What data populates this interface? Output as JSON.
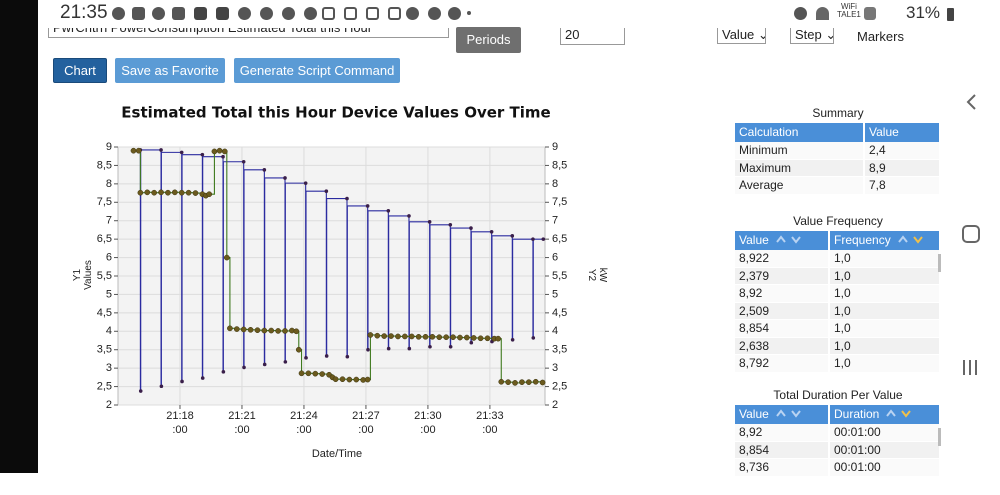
{
  "status_bar": {
    "time": "21:35",
    "wifi": "WiFi",
    "wifi_network": "TALE1",
    "battery": "31%"
  },
  "toolbar": {
    "device_select": "PwrCntrh PowerConsumption Estimated Total this Hour",
    "periods": "Periods",
    "period_count": "20",
    "value_mode": "Value",
    "line_mode": "Step",
    "markers": "Markers"
  },
  "buttons": [
    "Chart",
    "Save as Favorite",
    "Generate Script Command"
  ],
  "chart_data": {
    "type": "line",
    "title": "Estimated Total this Hour Device Values Over Time",
    "xlabel": "Date/Time",
    "ylabel": [
      "Y1",
      "Values"
    ],
    "y2label": [
      "Y2",
      "kW"
    ],
    "grid": true,
    "xlim": [
      "21:15:00",
      "21:35:40"
    ],
    "xticks": [
      {
        "value": "21:18:00",
        "label": [
          "21:18",
          ":00"
        ]
      },
      {
        "value": "21:21:00",
        "label": [
          "21:21",
          ":00"
        ]
      },
      {
        "value": "21:24:00",
        "label": [
          "21:24",
          ":00"
        ]
      },
      {
        "value": "21:27:00",
        "label": [
          "21:27",
          ":00"
        ]
      },
      {
        "value": "21:30:00",
        "label": [
          "21:30",
          ":00"
        ]
      },
      {
        "value": "21:33:00",
        "label": [
          "21:33",
          ":00"
        ]
      }
    ],
    "ylim": [
      2,
      9
    ],
    "yticks": [
      2,
      {
        "value": 2.5,
        "label": "2,5"
      },
      3,
      {
        "value": 3.5,
        "label": "3,5"
      },
      4,
      {
        "value": 4.5,
        "label": "4,5"
      },
      5,
      {
        "value": 5.5,
        "label": "5,5"
      },
      6,
      {
        "value": 6.5,
        "label": "6,5"
      },
      7,
      {
        "value": 7.5,
        "label": "7,5"
      },
      8,
      {
        "value": 8.5,
        "label": "8,5"
      },
      9
    ],
    "y2lim": [
      2,
      9
    ],
    "y2ticks": [
      2,
      {
        "value": 2.5,
        "label": "2,5"
      },
      3,
      {
        "value": 3.5,
        "label": "3,5"
      },
      4,
      {
        "value": 4.5,
        "label": "4,5"
      },
      5,
      {
        "value": 5.5,
        "label": "5,5"
      },
      6,
      {
        "value": 6.5,
        "label": "6,5"
      },
      7,
      {
        "value": 7.5,
        "label": "7,5"
      },
      8,
      {
        "value": 8.5,
        "label": "8,5"
      },
      9
    ],
    "series": [
      {
        "color": "#2b2ba0",
        "marker_color": "#3a1f4a",
        "step": "before",
        "x": [
          "21:16:05",
          "21:16:06",
          "21:17:05",
          "21:17:06",
          "21:18:05",
          "21:18:06",
          "21:19:05",
          "21:19:06",
          "21:20:05",
          "21:20:06",
          "21:21:05",
          "21:21:06",
          "21:22:05",
          "21:22:06",
          "21:23:05",
          "21:23:06",
          "21:24:05",
          "21:24:06",
          "21:25:05",
          "21:25:06",
          "21:26:05",
          "21:26:06",
          "21:27:05",
          "21:27:06",
          "21:28:05",
          "21:28:06",
          "21:29:05",
          "21:29:06",
          "21:30:05",
          "21:30:06",
          "21:31:05",
          "21:31:06",
          "21:32:05",
          "21:32:06",
          "21:33:05",
          "21:33:06",
          "21:34:05",
          "21:34:06",
          "21:35:05",
          "21:35:06",
          "21:35:35"
        ],
        "values": [
          8.922,
          2.379,
          8.92,
          2.509,
          8.854,
          2.638,
          8.792,
          2.73,
          8.736,
          2.9,
          8.6,
          3.02,
          8.38,
          3.1,
          8.16,
          3.17,
          8.02,
          3.28,
          7.8,
          3.33,
          7.6,
          3.31,
          7.4,
          3.5,
          7.27,
          3.53,
          7.13,
          3.53,
          6.97,
          3.58,
          6.89,
          3.58,
          6.8,
          3.69,
          6.7,
          3.72,
          6.59,
          3.77,
          6.5,
          3.82,
          6.5
        ]
      },
      {
        "axis": "y2",
        "color": "#3f7a1e",
        "marker_color": "#6b5a1e",
        "step": "after",
        "x": [
          "21:15:45",
          "21:16:00",
          "21:16:05",
          "21:16:25",
          "21:16:45",
          "21:17:05",
          "21:17:25",
          "21:17:45",
          "21:18:05",
          "21:18:25",
          "21:18:45",
          "21:19:05",
          "21:19:15",
          "21:19:25",
          "21:19:40",
          "21:19:55",
          "21:20:10",
          "21:20:16",
          "21:20:25",
          "21:20:45",
          "21:21:05",
          "21:21:25",
          "21:21:45",
          "21:22:05",
          "21:22:25",
          "21:22:45",
          "21:23:05",
          "21:23:25",
          "21:23:38",
          "21:23:45",
          "21:23:53",
          "21:24:13",
          "21:24:33",
          "21:24:53",
          "21:25:13",
          "21:25:23",
          "21:25:32",
          "21:25:52",
          "21:26:12",
          "21:26:32",
          "21:26:52",
          "21:27:05",
          "21:27:13",
          "21:27:33",
          "21:27:53",
          "21:28:13",
          "21:28:33",
          "21:28:53",
          "21:29:13",
          "21:29:33",
          "21:29:53",
          "21:30:13",
          "21:30:33",
          "21:30:53",
          "21:31:13",
          "21:31:33",
          "21:31:53",
          "21:32:13",
          "21:32:33",
          "21:32:53",
          "21:33:13",
          "21:33:24",
          "21:33:33",
          "21:33:53",
          "21:34:13",
          "21:34:33",
          "21:34:53",
          "21:35:13",
          "21:35:33"
        ],
        "values": [
          8.9,
          8.9,
          7.76,
          7.77,
          7.76,
          7.77,
          7.76,
          7.77,
          7.76,
          7.76,
          7.75,
          7.72,
          7.68,
          7.72,
          8.88,
          8.9,
          8.88,
          6.0,
          4.08,
          4.06,
          4.05,
          4.04,
          4.03,
          4.02,
          4.02,
          4.01,
          4.01,
          4.02,
          4.0,
          3.5,
          2.86,
          2.86,
          2.85,
          2.84,
          2.82,
          2.75,
          2.7,
          2.7,
          2.69,
          2.69,
          2.68,
          2.69,
          3.9,
          3.88,
          3.87,
          3.87,
          3.86,
          3.86,
          3.86,
          3.85,
          3.85,
          3.85,
          3.84,
          3.84,
          3.84,
          3.83,
          3.83,
          3.82,
          3.81,
          3.81,
          3.8,
          3.8,
          2.63,
          2.62,
          2.6,
          2.62,
          2.62,
          2.63,
          2.61
        ]
      }
    ]
  },
  "summary": {
    "title": "Summary",
    "headers": [
      "Calculation",
      "Value"
    ],
    "rows": [
      [
        "Minimum",
        "2,4"
      ],
      [
        "Maximum",
        "8,9"
      ],
      [
        "Average",
        "7,8"
      ]
    ]
  },
  "value_frequency": {
    "title": "Value Frequency",
    "headers": [
      "Value",
      "Frequency"
    ],
    "rows": [
      [
        "8,922",
        "1,0"
      ],
      [
        "2,379",
        "1,0"
      ],
      [
        "8,92",
        "1,0"
      ],
      [
        "2,509",
        "1,0"
      ],
      [
        "8,854",
        "1,0"
      ],
      [
        "2,638",
        "1,0"
      ],
      [
        "8,792",
        "1,0"
      ]
    ]
  },
  "duration": {
    "title": "Total Duration Per Value",
    "headers": [
      "Value",
      "Duration"
    ],
    "rows": [
      [
        "8,92",
        "00:01:00"
      ],
      [
        "8,854",
        "00:01:00"
      ],
      [
        "8,736",
        "00:01:00"
      ]
    ]
  }
}
